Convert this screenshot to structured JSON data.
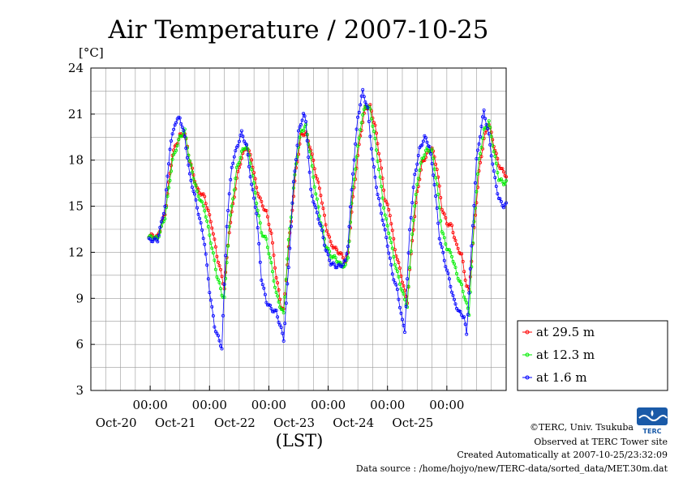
{
  "chart_data": {
    "type": "line",
    "title": "Air Temperature / 2007-10-25",
    "ylabel": "[°C]",
    "xlabel": "(LST)",
    "ylim": [
      3,
      24
    ],
    "yticks": [
      "24",
      "21",
      "18",
      "15",
      "12",
      "9",
      "6",
      "3"
    ],
    "xlim_hours": [
      -24,
      144
    ],
    "xticks": [
      {
        "hour": 0,
        "time": "00:00",
        "date": "Oct-20"
      },
      {
        "hour": 24,
        "time": "00:00",
        "date": "Oct-21"
      },
      {
        "hour": 48,
        "time": "00:00",
        "date": "Oct-22"
      },
      {
        "hour": 72,
        "time": "00:00",
        "date": "Oct-23"
      },
      {
        "hour": 96,
        "time": "00:00",
        "date": "Oct-24"
      },
      {
        "hour": 120,
        "time": "00:00",
        "date": "Oct-25"
      }
    ],
    "grid": true,
    "legend_position": "right-bottom",
    "series": [
      {
        "name": "at 29.5 m",
        "color": "#ff0000",
        "knots": [
          [
            -0.5,
            13.1
          ],
          [
            3,
            13.0
          ],
          [
            6,
            14.5
          ],
          [
            9,
            18.4
          ],
          [
            12,
            19.6
          ],
          [
            14,
            19.7
          ],
          [
            16,
            18.0
          ],
          [
            19,
            16.1
          ],
          [
            22,
            15.6
          ],
          [
            25,
            13.7
          ],
          [
            27,
            11.8
          ],
          [
            29,
            10.4
          ],
          [
            30,
            9.7
          ],
          [
            32,
            13.4
          ],
          [
            35,
            16.8
          ],
          [
            37,
            18.2
          ],
          [
            39,
            18.9
          ],
          [
            41,
            18.1
          ],
          [
            43,
            16.2
          ],
          [
            45,
            15.2
          ],
          [
            47,
            14.6
          ],
          [
            49,
            13.2
          ],
          [
            51,
            10.4
          ],
          [
            53,
            8.5
          ],
          [
            54,
            8.2
          ],
          [
            56,
            12.3
          ],
          [
            59,
            17.4
          ],
          [
            61,
            19.6
          ],
          [
            63,
            19.8
          ],
          [
            65,
            18.7
          ],
          [
            67,
            17.1
          ],
          [
            69,
            15.8
          ],
          [
            71,
            13.8
          ],
          [
            73,
            12.6
          ],
          [
            75,
            12.2
          ],
          [
            77,
            11.9
          ],
          [
            79,
            11.4
          ],
          [
            80,
            11.9
          ],
          [
            82,
            15.5
          ],
          [
            85,
            19.6
          ],
          [
            87,
            21.4
          ],
          [
            89,
            21.5
          ],
          [
            91,
            20.2
          ],
          [
            93,
            18.0
          ],
          [
            95,
            15.5
          ],
          [
            97,
            14.5
          ],
          [
            99,
            12.2
          ],
          [
            101,
            10.9
          ],
          [
            103,
            9.4
          ],
          [
            104,
            8.8
          ],
          [
            106,
            12.8
          ],
          [
            108,
            15.9
          ],
          [
            110,
            17.8
          ],
          [
            112,
            18.4
          ],
          [
            114,
            18.8
          ],
          [
            116,
            17.5
          ],
          [
            118,
            14.9
          ],
          [
            120,
            13.9
          ],
          [
            122,
            13.7
          ],
          [
            124,
            12.4
          ],
          [
            126,
            11.8
          ],
          [
            128,
            9.8
          ],
          [
            129,
            9.5
          ],
          [
            131,
            13.5
          ],
          [
            133,
            17.2
          ],
          [
            135,
            19.4
          ],
          [
            137,
            20.4
          ],
          [
            139,
            19.0
          ],
          [
            141,
            17.7
          ],
          [
            143,
            17.2
          ],
          [
            144,
            17.0
          ]
        ]
      },
      {
        "name": "at 12.3 m",
        "color": "#00ee00",
        "knots": [
          [
            -0.5,
            13.0
          ],
          [
            3,
            12.9
          ],
          [
            6,
            14.3
          ],
          [
            9,
            18.0
          ],
          [
            12,
            19.5
          ],
          [
            14,
            19.9
          ],
          [
            16,
            17.9
          ],
          [
            19,
            15.9
          ],
          [
            22,
            14.8
          ],
          [
            25,
            12.3
          ],
          [
            27,
            10.5
          ],
          [
            29,
            9.3
          ],
          [
            30,
            9.0
          ],
          [
            32,
            13.7
          ],
          [
            35,
            17.4
          ],
          [
            37,
            18.5
          ],
          [
            39,
            19.0
          ],
          [
            41,
            17.5
          ],
          [
            43,
            15.3
          ],
          [
            45,
            13.3
          ],
          [
            47,
            12.8
          ],
          [
            49,
            11.2
          ],
          [
            51,
            9.3
          ],
          [
            53,
            8.3
          ],
          [
            54,
            8.0
          ],
          [
            56,
            12.7
          ],
          [
            59,
            17.8
          ],
          [
            61,
            19.9
          ],
          [
            63,
            20.2
          ],
          [
            65,
            18.1
          ],
          [
            67,
            15.8
          ],
          [
            69,
            14.0
          ],
          [
            71,
            12.5
          ],
          [
            73,
            11.8
          ],
          [
            75,
            11.6
          ],
          [
            77,
            11.2
          ],
          [
            79,
            11.1
          ],
          [
            80,
            11.7
          ],
          [
            82,
            16.2
          ],
          [
            85,
            20.1
          ],
          [
            87,
            21.6
          ],
          [
            89,
            21.3
          ],
          [
            91,
            19.3
          ],
          [
            93,
            16.8
          ],
          [
            95,
            14.4
          ],
          [
            97,
            13.0
          ],
          [
            99,
            11.3
          ],
          [
            101,
            10.0
          ],
          [
            103,
            8.9
          ],
          [
            104,
            8.5
          ],
          [
            106,
            13.3
          ],
          [
            108,
            16.5
          ],
          [
            110,
            18.1
          ],
          [
            112,
            18.7
          ],
          [
            114,
            18.6
          ],
          [
            116,
            16.4
          ],
          [
            118,
            13.4
          ],
          [
            120,
            12.3
          ],
          [
            122,
            11.8
          ],
          [
            124,
            10.6
          ],
          [
            126,
            9.8
          ],
          [
            128,
            8.6
          ],
          [
            129,
            8.0
          ],
          [
            131,
            14.0
          ],
          [
            133,
            18.0
          ],
          [
            135,
            19.9
          ],
          [
            137,
            20.5
          ],
          [
            139,
            18.6
          ],
          [
            141,
            16.8
          ],
          [
            143,
            16.5
          ],
          [
            144,
            16.6
          ]
        ]
      },
      {
        "name": "at 1.6 m",
        "color": "#0000ff",
        "knots": [
          [
            -0.5,
            12.8
          ],
          [
            3,
            12.8
          ],
          [
            6,
            15.0
          ],
          [
            8,
            18.8
          ],
          [
            10,
            20.4
          ],
          [
            12,
            20.8
          ],
          [
            14,
            19.5
          ],
          [
            16,
            17.0
          ],
          [
            18,
            15.7
          ],
          [
            20,
            14.2
          ],
          [
            22,
            12.6
          ],
          [
            24,
            9.5
          ],
          [
            26,
            7.2
          ],
          [
            28,
            6.2
          ],
          [
            29,
            5.8
          ],
          [
            31,
            13.8
          ],
          [
            33,
            17.6
          ],
          [
            35,
            18.8
          ],
          [
            37,
            19.8
          ],
          [
            39,
            18.9
          ],
          [
            41,
            16.4
          ],
          [
            43,
            14.6
          ],
          [
            45,
            10.3
          ],
          [
            47,
            8.8
          ],
          [
            49,
            8.3
          ],
          [
            51,
            8.1
          ],
          [
            53,
            7.0
          ],
          [
            54,
            6.3
          ],
          [
            56,
            11.0
          ],
          [
            58,
            16.5
          ],
          [
            60,
            19.8
          ],
          [
            62,
            21.0
          ],
          [
            63,
            20.5
          ],
          [
            65,
            16.0
          ],
          [
            67,
            14.8
          ],
          [
            69,
            13.7
          ],
          [
            71,
            12.2
          ],
          [
            73,
            11.3
          ],
          [
            75,
            11.1
          ],
          [
            77,
            11.1
          ],
          [
            79,
            11.4
          ],
          [
            80,
            12.5
          ],
          [
            82,
            17.2
          ],
          [
            84,
            20.8
          ],
          [
            86,
            22.5
          ],
          [
            88,
            21.3
          ],
          [
            90,
            18.0
          ],
          [
            92,
            15.8
          ],
          [
            94,
            14.2
          ],
          [
            96,
            12.5
          ],
          [
            98,
            10.6
          ],
          [
            100,
            9.5
          ],
          [
            102,
            7.5
          ],
          [
            103,
            6.9
          ],
          [
            105,
            13.5
          ],
          [
            107,
            17.0
          ],
          [
            109,
            18.7
          ],
          [
            111,
            19.5
          ],
          [
            113,
            18.9
          ],
          [
            115,
            16.5
          ],
          [
            117,
            13.0
          ],
          [
            119,
            11.5
          ],
          [
            121,
            10.2
          ],
          [
            123,
            8.8
          ],
          [
            125,
            8.1
          ],
          [
            127,
            7.8
          ],
          [
            128,
            6.6
          ],
          [
            130,
            12.3
          ],
          [
            132,
            18.0
          ],
          [
            134,
            20.2
          ],
          [
            135,
            21.2
          ],
          [
            137,
            19.6
          ],
          [
            139,
            17.2
          ],
          [
            141,
            15.5
          ],
          [
            143,
            15.0
          ],
          [
            144,
            15.1
          ]
        ]
      }
    ]
  },
  "footer": {
    "copyright": "©TERC, Univ. Tsukuba",
    "observed": "Observed at TERC Tower site",
    "created": "Created Automatically at 2007-10-25/23:32:09",
    "source": "Data source : /home/hojyo/new/TERC-data/sorted_data/MET.30m.dat",
    "logo_text": "TERC"
  }
}
